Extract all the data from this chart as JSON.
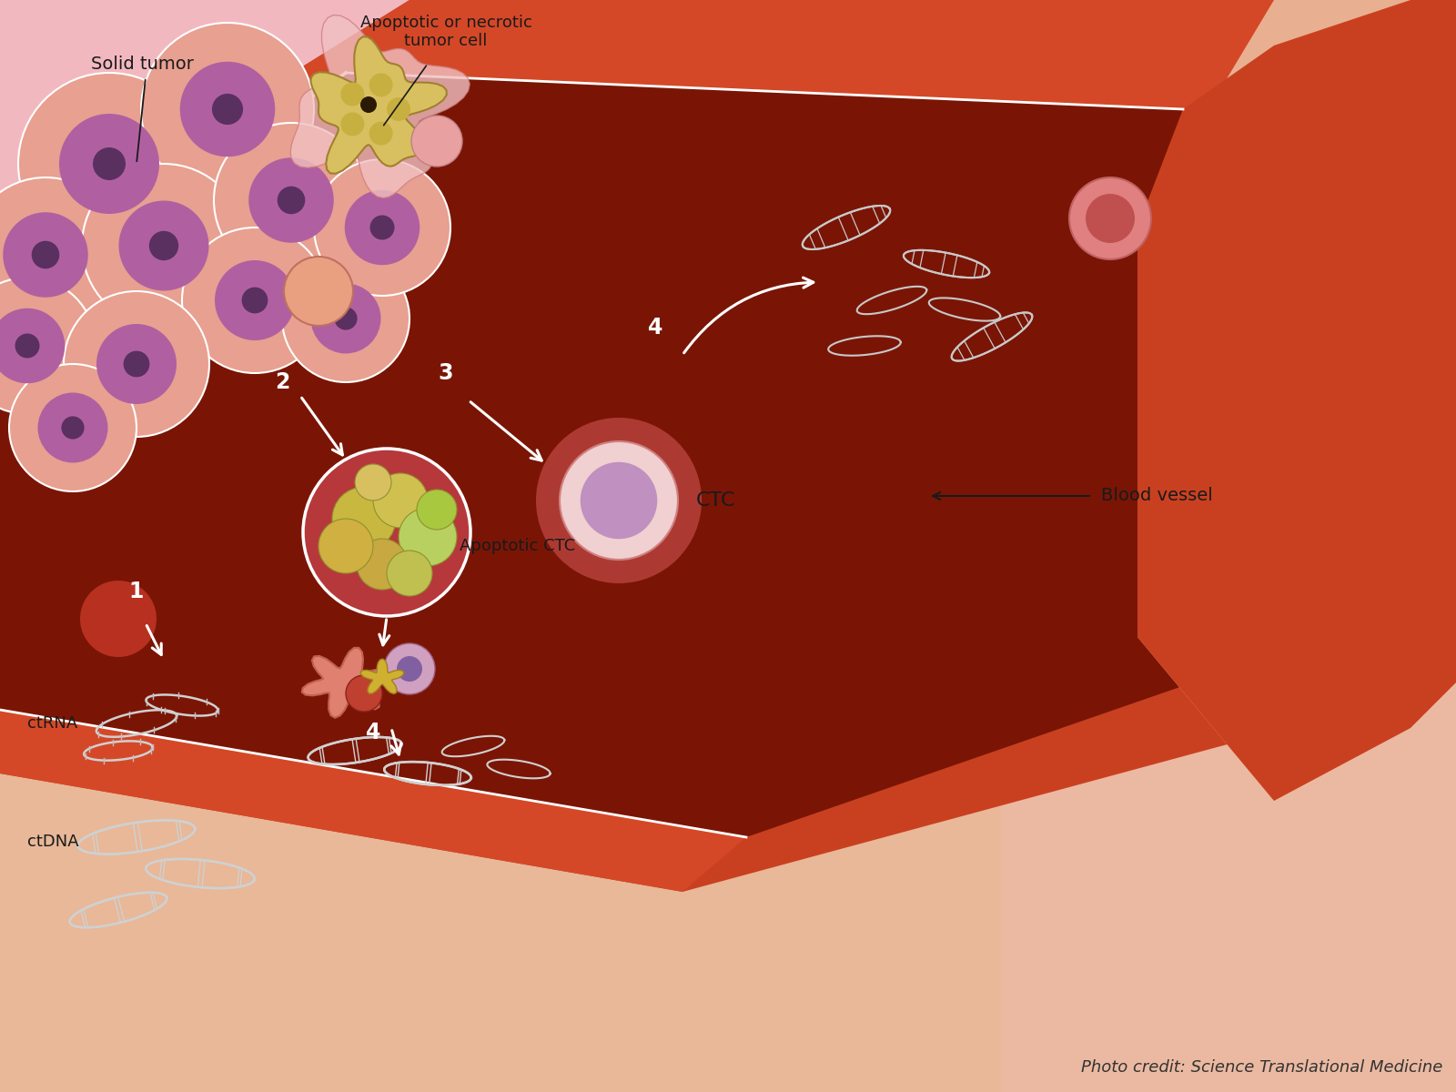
{
  "background_color": "#e8b090",
  "credit_text": "Photo credit: Science Translational Medicine",
  "credit_fontsize": 13,
  "credit_style": "italic",
  "labels": {
    "solid_tumor": "Solid tumor",
    "apoptotic_necrotic": "Apoptotic or necrotic\ntumor cell",
    "CTC": "CTC",
    "apoptotic_ctc": "Apoptotic CTC",
    "blood_vessel": "Blood vessel",
    "ctRNA": "ctRNA",
    "ctDNA": "ctDNA",
    "step1": "1",
    "step2": "2",
    "step3": "3",
    "step4a": "4",
    "step4b": "4"
  },
  "colors": {
    "vessel_outer": "#c94020",
    "vessel_inner": "#7a1505",
    "vessel_wall": "#d44828",
    "skin": "#e8b090",
    "pink_bg": "#f2b8c0",
    "white": "#ffffff",
    "label_dark": "#1a1a1a",
    "dna": "#d0d0d0",
    "ctc_outer": "#f0d0d0",
    "ctc_inner": "#c090c0",
    "apoptotic_yellow": "#c8b840",
    "apoptotic_green": "#b8d060"
  }
}
